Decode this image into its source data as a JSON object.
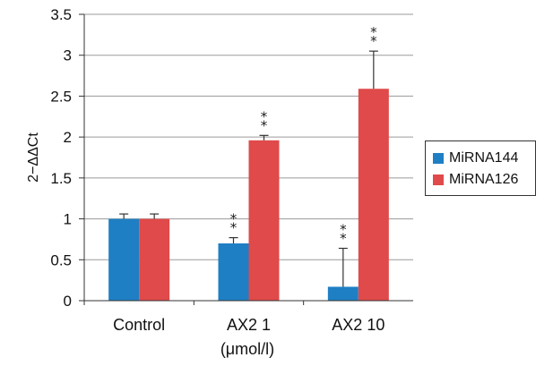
{
  "chart_data": {
    "type": "bar",
    "categories": [
      "Control",
      "AX2 1",
      "AX2 10"
    ],
    "xlabel_sub": "(μmol/l)",
    "ylabel": "2−ΔΔCt",
    "ylim": [
      0,
      3.5
    ],
    "yticks": [
      "0",
      "0.5",
      "1",
      "1.5",
      "2",
      "2.5",
      "3",
      "3.5"
    ],
    "grid": true,
    "legend_position": "right",
    "series": [
      {
        "name": "MiRNA144",
        "color": "#1f7fc4",
        "values": [
          1.0,
          0.7,
          0.17
        ],
        "errors": [
          0.06,
          0.07,
          0.47
        ],
        "significance": [
          "",
          "**",
          "**"
        ]
      },
      {
        "name": "MiRNA126",
        "color": "#e04a4a",
        "values": [
          1.0,
          1.96,
          2.59
        ],
        "errors": [
          0.06,
          0.06,
          0.46
        ],
        "significance": [
          "",
          "**",
          "**"
        ]
      }
    ]
  }
}
